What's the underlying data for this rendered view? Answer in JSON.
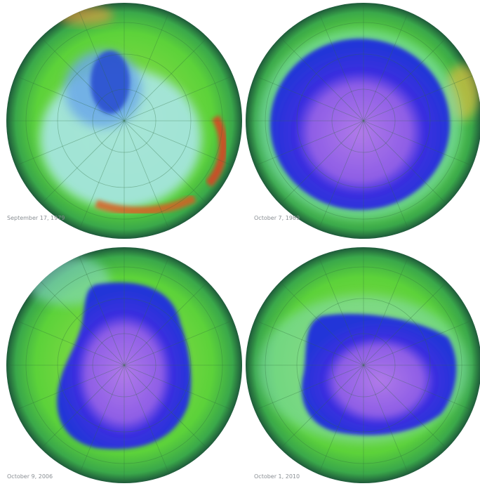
{
  "panels": [
    {
      "label": "September 17, 1979"
    },
    {
      "label": "October 7, 1989"
    },
    {
      "label": "October 9, 2006"
    },
    {
      "label": "October 1, 2010"
    }
  ]
}
